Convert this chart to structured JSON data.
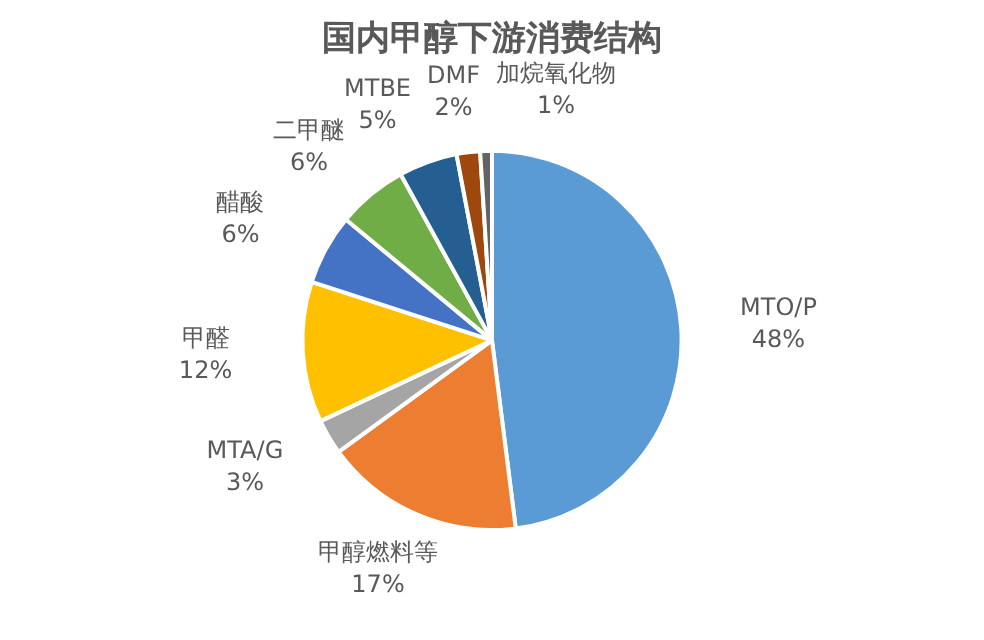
{
  "chart_data": {
    "type": "pie",
    "title": "国内甲醇下游消费结构",
    "categories": [
      "MTO/P",
      "甲醇燃料等",
      "MTA/G",
      "甲醛",
      "醋酸",
      "二甲醚",
      "MTBE",
      "DMF",
      "加烷氧化物"
    ],
    "values": [
      48,
      17,
      3,
      12,
      6,
      6,
      5,
      2,
      1
    ],
    "value_labels": [
      "48%",
      "17%",
      "3%",
      "12%",
      "6%",
      "6%",
      "5%",
      "2%",
      "1%"
    ],
    "colors": [
      "#5b9bd5",
      "#ed7d31",
      "#a5a5a5",
      "#ffc000",
      "#4472c4",
      "#70ad47",
      "#255e91",
      "#9e480e",
      "#636363"
    ],
    "legend": false
  }
}
